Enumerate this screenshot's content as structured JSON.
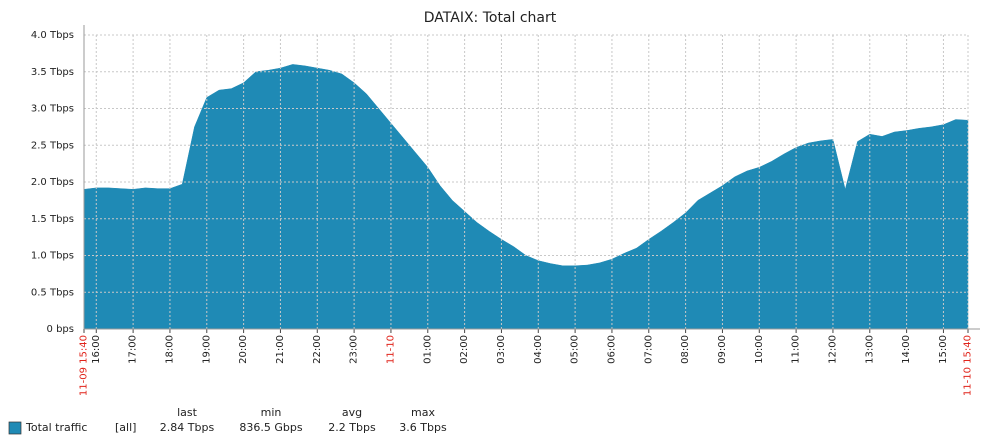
{
  "chart_data": {
    "type": "area",
    "title": "DATAIX: Total chart",
    "x": [
      "11-09 15:40",
      "11-09 16:00",
      "11-09 16:20",
      "11-09 16:40",
      "11-09 17:00",
      "11-09 17:20",
      "11-09 17:40",
      "11-09 18:00",
      "11-09 18:20",
      "11-09 18:40",
      "11-09 19:00",
      "11-09 19:20",
      "11-09 19:40",
      "11-09 20:00",
      "11-09 20:20",
      "11-09 20:40",
      "11-09 21:00",
      "11-09 21:20",
      "11-09 21:40",
      "11-09 22:00",
      "11-09 22:20",
      "11-09 22:40",
      "11-09 23:00",
      "11-09 23:20",
      "11-09 23:40",
      "11-10 00:00",
      "11-10 00:20",
      "11-10 00:40",
      "11-10 01:00",
      "11-10 01:20",
      "11-10 01:40",
      "11-10 02:00",
      "11-10 02:20",
      "11-10 02:40",
      "11-10 03:00",
      "11-10 03:20",
      "11-10 03:40",
      "11-10 04:00",
      "11-10 04:20",
      "11-10 04:40",
      "11-10 05:00",
      "11-10 05:20",
      "11-10 05:40",
      "11-10 06:00",
      "11-10 06:20",
      "11-10 06:40",
      "11-10 07:00",
      "11-10 07:20",
      "11-10 07:40",
      "11-10 08:00",
      "11-10 08:20",
      "11-10 08:40",
      "11-10 09:00",
      "11-10 09:20",
      "11-10 09:40",
      "11-10 10:00",
      "11-10 10:20",
      "11-10 10:40",
      "11-10 11:00",
      "11-10 11:20",
      "11-10 11:40",
      "11-10 12:00",
      "11-10 12:20",
      "11-10 12:40",
      "11-10 13:00",
      "11-10 13:20",
      "11-10 13:40",
      "11-10 14:00",
      "11-10 14:20",
      "11-10 14:40",
      "11-10 15:00",
      "11-10 15:20",
      "11-10 15:40"
    ],
    "series": [
      {
        "name": "Total traffic",
        "color": "#1f8ab5",
        "values": [
          1.9,
          1.92,
          1.92,
          1.91,
          1.9,
          1.92,
          1.91,
          1.91,
          1.97,
          2.75,
          3.15,
          3.25,
          3.27,
          3.35,
          3.5,
          3.52,
          3.55,
          3.6,
          3.58,
          3.55,
          3.52,
          3.47,
          3.35,
          3.2,
          3.0,
          2.8,
          2.6,
          2.4,
          2.2,
          1.95,
          1.75,
          1.6,
          1.45,
          1.33,
          1.22,
          1.12,
          1.0,
          0.93,
          0.89,
          0.86,
          0.86,
          0.87,
          0.9,
          0.95,
          1.03,
          1.1,
          1.22,
          1.33,
          1.45,
          1.58,
          1.75,
          1.85,
          1.95,
          2.07,
          2.15,
          2.2,
          2.28,
          2.38,
          2.47,
          2.53,
          2.56,
          2.58,
          1.9,
          2.55,
          2.65,
          2.62,
          2.68,
          2.7,
          2.73,
          2.75,
          2.78,
          2.85,
          2.84
        ]
      }
    ],
    "xlim": [
      "11-09 15:40",
      "11-10 15:40"
    ],
    "xticks": [
      {
        "value": "11-09 15:40",
        "label": "11-09 15:40"
      },
      {
        "value": "11-09 16:00",
        "label": "16:00"
      },
      {
        "value": "11-09 17:00",
        "label": "17:00"
      },
      {
        "value": "11-09 18:00",
        "label": "18:00"
      },
      {
        "value": "11-09 19:00",
        "label": "19:00"
      },
      {
        "value": "11-09 20:00",
        "label": "20:00"
      },
      {
        "value": "11-09 21:00",
        "label": "21:00"
      },
      {
        "value": "11-09 22:00",
        "label": "22:00"
      },
      {
        "value": "11-09 23:00",
        "label": "23:00"
      },
      {
        "value": "11-10 00:00",
        "label": "11-10"
      },
      {
        "value": "11-10 01:00",
        "label": "01:00"
      },
      {
        "value": "11-10 02:00",
        "label": "02:00"
      },
      {
        "value": "11-10 03:00",
        "label": "03:00"
      },
      {
        "value": "11-10 04:00",
        "label": "04:00"
      },
      {
        "value": "11-10 05:00",
        "label": "05:00"
      },
      {
        "value": "11-10 06:00",
        "label": "06:00"
      },
      {
        "value": "11-10 07:00",
        "label": "07:00"
      },
      {
        "value": "11-10 08:00",
        "label": "08:00"
      },
      {
        "value": "11-10 09:00",
        "label": "09:00"
      },
      {
        "value": "11-10 10:00",
        "label": "10:00"
      },
      {
        "value": "11-10 11:00",
        "label": "11:00"
      },
      {
        "value": "11-10 12:00",
        "label": "12:00"
      },
      {
        "value": "11-10 13:00",
        "label": "13:00"
      },
      {
        "value": "11-10 14:00",
        "label": "14:00"
      },
      {
        "value": "11-10 15:00",
        "label": "15:00"
      },
      {
        "value": "11-10 15:40",
        "label": "11-10 15:40"
      }
    ],
    "ylim": [
      0,
      4
    ],
    "yticks": [
      {
        "value": 0,
        "label": "0 bps"
      },
      {
        "value": 0.5,
        "label": "0.5 Tbps"
      },
      {
        "value": 1,
        "label": "1.0 Tbps"
      },
      {
        "value": 1.5,
        "label": "1.5 Tbps"
      },
      {
        "value": 2,
        "label": "2.0 Tbps"
      },
      {
        "value": 2.5,
        "label": "2.5 Tbps"
      },
      {
        "value": 3,
        "label": "3.0 Tbps"
      },
      {
        "value": 3.5,
        "label": "3.5 Tbps"
      },
      {
        "value": 4,
        "label": "4.0 Tbps"
      }
    ],
    "grid": true,
    "legend": {
      "scope": "[all]",
      "columns": [
        "last",
        "min",
        "avg",
        "max"
      ],
      "values": [
        2.84,
        0.8365,
        2.2,
        3.6
      ],
      "value_labels": [
        "2.84 Tbps",
        "836.5 Gbps",
        "2.2 Tbps",
        "3.6 Tbps"
      ]
    }
  }
}
